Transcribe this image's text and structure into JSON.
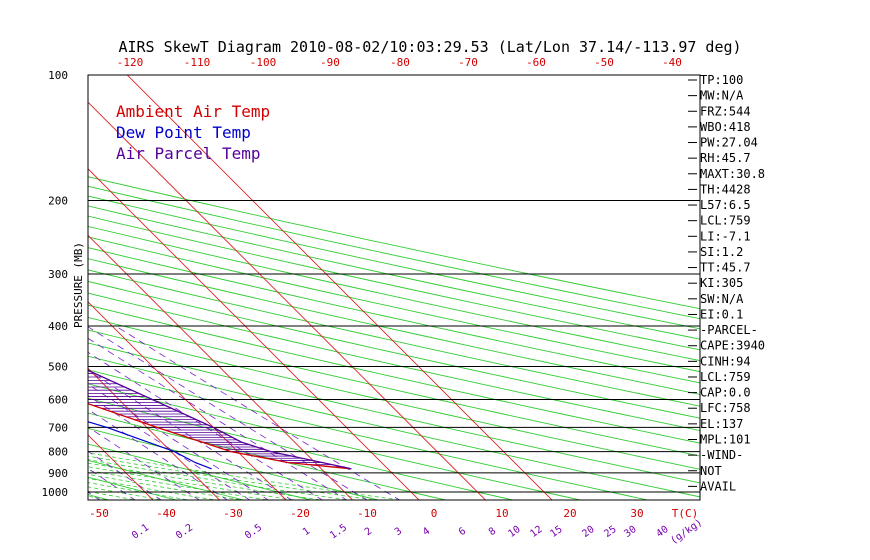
{
  "chart_data": {
    "type": "skewt",
    "title": "AIRS SkewT Diagram 2010-08-02/10:03:29.53 (Lat/Lon 37.14/-113.97 deg)",
    "ylabel": "PRESSURE (MB)",
    "pressure_ticks": [
      100,
      200,
      300,
      400,
      500,
      600,
      700,
      800,
      900,
      1000
    ],
    "bottom_temp_ticks": [
      "-50",
      "-40",
      "-30",
      "-20",
      "-10",
      "0",
      "10",
      "20",
      "30",
      "T(C)"
    ],
    "top_temp_ticks": [
      "-120",
      "-110",
      "-100",
      "-90",
      "-80",
      "-70",
      "-60",
      "-50",
      "-40"
    ],
    "mixing_ratio_ticks": [
      "0.1",
      "0.2",
      "0.5",
      "1",
      "1.5",
      "2",
      "3",
      "4",
      "6",
      "8",
      "10",
      "12",
      "15",
      "20",
      "25",
      "30",
      "40",
      "(g/kg)"
    ],
    "legend": [
      {
        "label": "Ambient Air Temp",
        "color": "#d00000"
      },
      {
        "label": "Dew Point Temp",
        "color": "#0000cc"
      },
      {
        "label": "Air Parcel Temp",
        "color": "#550099"
      }
    ],
    "indices": [
      "TP:100",
      "MW:N/A",
      "FRZ:544",
      "WBO:418",
      "PW:27.04",
      "RH:45.7",
      "MAXT:30.8",
      "TH:4428",
      "L57:6.5",
      "LCL:759",
      "LI:-7.1",
      "SI:1.2",
      "TT:45.7",
      "KI:305",
      "SW:N/A",
      "EI:0.1",
      "-PARCEL-",
      "CAPE:3940",
      "CINH:94",
      "LCL:759",
      "CAP:0.0",
      "LFC:758",
      "EL:137",
      "MPL:101",
      "-WIND-",
      "NOT",
      "AVAIL"
    ],
    "series": [
      {
        "name": "Ambient Air Temp",
        "color": "#d00000",
        "points": [
          [
            880,
            34.5
          ],
          [
            850,
            26
          ],
          [
            800,
            19
          ],
          [
            700,
            11.5
          ],
          [
            600,
            3.5
          ],
          [
            500,
            -7.5
          ],
          [
            400,
            -22
          ],
          [
            300,
            -41
          ],
          [
            250,
            -51
          ],
          [
            200,
            -64
          ],
          [
            170,
            -70
          ],
          [
            150,
            -70
          ],
          [
            130,
            -67
          ],
          [
            100,
            -59
          ]
        ]
      },
      {
        "name": "Dew Point Temp",
        "color": "#0000cc",
        "points": [
          [
            880,
            13.5
          ],
          [
            850,
            12
          ],
          [
            800,
            10.5
          ],
          [
            700,
            4
          ],
          [
            600,
            -6
          ],
          [
            500,
            -18
          ],
          [
            450,
            -25
          ],
          [
            400,
            -30
          ],
          [
            300,
            -45
          ],
          [
            250,
            -56
          ],
          [
            220,
            -64
          ],
          [
            200,
            -69
          ],
          [
            170,
            -75
          ],
          [
            150,
            -80
          ],
          [
            100,
            -88
          ]
        ]
      },
      {
        "name": "Air Parcel Temp",
        "color": "#550099",
        "points": [
          [
            880,
            34.5
          ],
          [
            800,
            25
          ],
          [
            759,
            22
          ],
          [
            700,
            20
          ],
          [
            600,
            15
          ],
          [
            500,
            9
          ],
          [
            400,
            1
          ],
          [
            300,
            -13
          ],
          [
            250,
            -24
          ],
          [
            200,
            -37
          ],
          [
            150,
            -55
          ],
          [
            100,
            -78
          ]
        ]
      }
    ],
    "temperature_range_c": [
      -50,
      40
    ],
    "pressure_range_mb": [
      100,
      1050
    ],
    "grid": true
  }
}
